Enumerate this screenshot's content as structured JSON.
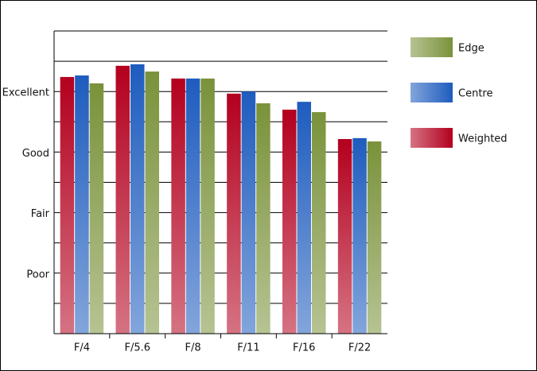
{
  "chart_data": {
    "type": "bar",
    "categories": [
      "F/4",
      "F/5.6",
      "F/8",
      "F/11",
      "F/16",
      "F/22"
    ],
    "series": [
      {
        "name": "Weighted",
        "color": "#b3001e",
        "values": [
          8.48,
          8.85,
          8.43,
          7.93,
          7.4,
          6.43
        ]
      },
      {
        "name": "Centre",
        "color": "#1e5cbe",
        "values": [
          8.53,
          8.9,
          8.43,
          8.0,
          7.66,
          6.46
        ]
      },
      {
        "name": "Edge",
        "color": "#7a923a",
        "values": [
          8.27,
          8.66,
          8.43,
          7.61,
          7.32,
          6.35
        ]
      }
    ],
    "ylim": [
      0,
      10
    ],
    "yticks": [
      {
        "value": 2,
        "label": "Poor"
      },
      {
        "value": 4,
        "label": "Fair"
      },
      {
        "value": 6,
        "label": "Good"
      },
      {
        "value": 8,
        "label": "Excellent"
      }
    ],
    "grid": true,
    "legend": "right"
  }
}
